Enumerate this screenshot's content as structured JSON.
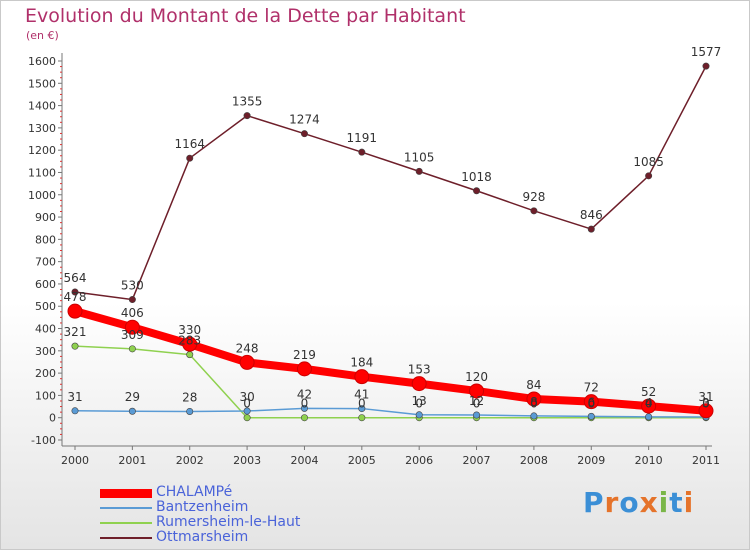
{
  "title": "Evolution du Montant de la Dette par Habitant",
  "unit": "(en €)",
  "logo": {
    "text": "Proxiti",
    "letters": [
      "P",
      "r",
      "o",
      "x",
      "i",
      "t",
      "i"
    ],
    "colors": [
      "#3b8fd6",
      "#e5732a",
      "#3b8fd6",
      "#e5732a",
      "#7ab648",
      "#3b8fd6",
      "#e5732a"
    ]
  },
  "chart_data": {
    "type": "line",
    "title": "Evolution du Montant de la Dette par Habitant",
    "ylabel": "(en €)",
    "xlabel": "",
    "categories": [
      "2000",
      "2001",
      "2002",
      "2003",
      "2004",
      "2005",
      "2006",
      "2007",
      "2008",
      "2009",
      "2010",
      "2011"
    ],
    "ylim": [
      -100,
      1600
    ],
    "yticks": [
      -100,
      0,
      100,
      200,
      300,
      400,
      500,
      600,
      700,
      800,
      900,
      1000,
      1100,
      1200,
      1300,
      1400,
      1500,
      1600
    ],
    "grid": false,
    "legend_position": "bottom-left",
    "series": [
      {
        "name": "CHALAMPé",
        "color": "#ff0000",
        "values": [
          478,
          406,
          330,
          248,
          219,
          184,
          153,
          120,
          84,
          72,
          52,
          31
        ],
        "labels": [
          "478",
          "406",
          "330",
          "248",
          "219",
          "184",
          "153",
          "120",
          "84",
          "72",
          "52",
          "31"
        ]
      },
      {
        "name": "Bantzenheim",
        "color": "#5a9bd5",
        "values": [
          31,
          29,
          28,
          30,
          42,
          41,
          13,
          12,
          8,
          6,
          4,
          3
        ],
        "labels": [
          "31",
          "29",
          "28",
          "30",
          "42",
          "41",
          "13",
          "12",
          "8",
          "6",
          "4",
          "3"
        ]
      },
      {
        "name": "Rumersheim-le-Haut",
        "color": "#8fd14f",
        "values": [
          321,
          309,
          283,
          0,
          0,
          0,
          0,
          0,
          0,
          0,
          0,
          0
        ],
        "labels": [
          "321",
          "309",
          "283",
          "0",
          "0",
          "0",
          "0",
          "0",
          "0",
          "0",
          "0",
          "0"
        ]
      },
      {
        "name": "Ottmarsheim",
        "color": "#6e1f2a",
        "values": [
          564,
          530,
          1164,
          1355,
          1274,
          1191,
          1105,
          1018,
          928,
          846,
          1085,
          1577
        ],
        "labels": [
          "564",
          "530",
          "1164",
          "1355",
          "1274",
          "1191",
          "1105",
          "1018",
          "928",
          "846",
          "1085",
          "1577"
        ]
      }
    ]
  }
}
